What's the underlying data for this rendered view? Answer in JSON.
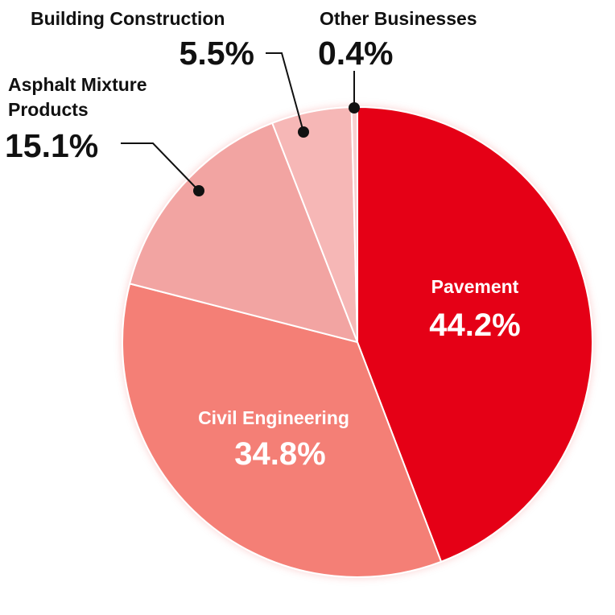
{
  "chart_data": {
    "type": "pie",
    "start": "12 o'clock",
    "direction": "clockwise",
    "slices": [
      {
        "key": "pavement",
        "label": "Pavement",
        "value": 44.2,
        "value_label": "44.2%",
        "color": "#e50012"
      },
      {
        "key": "civil",
        "label": "Civil Engineering",
        "value": 34.8,
        "value_label": "34.8%",
        "color": "#f47f76"
      },
      {
        "key": "asphalt",
        "label": "Asphalt Mixture Products",
        "label_lines": [
          "Asphalt Mixture",
          "Products"
        ],
        "value": 15.1,
        "value_label": "15.1%",
        "color": "#f2a4a2"
      },
      {
        "key": "building",
        "label": "Building Construction",
        "value": 5.5,
        "value_label": "5.5%",
        "color": "#f6b7b6"
      },
      {
        "key": "other",
        "label": "Other Businesses",
        "value": 0.4,
        "value_label": "0.4%",
        "color": "#f9cfd0"
      }
    ]
  }
}
